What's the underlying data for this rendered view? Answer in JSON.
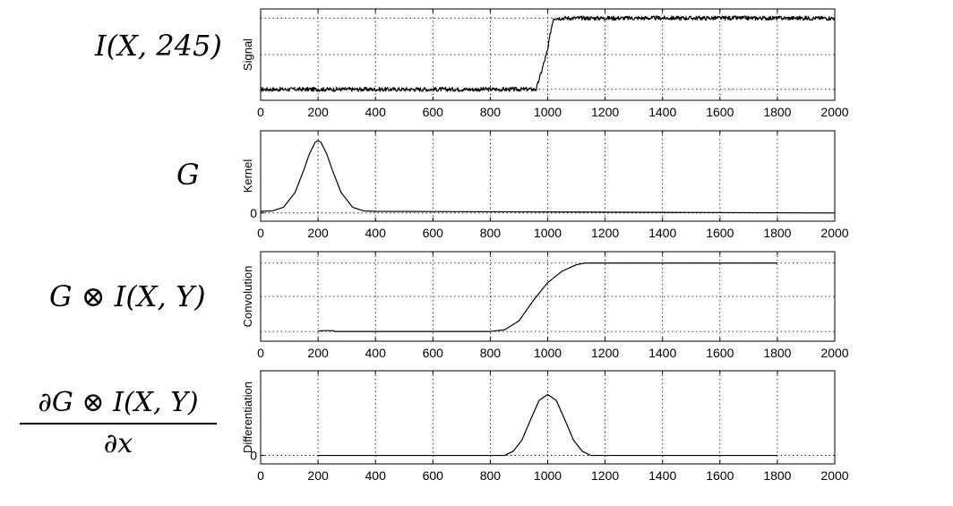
{
  "equations": {
    "signal": "I(X, 245)",
    "kernel": "G",
    "convolution": "G ⊗ I(X, Y)",
    "diff_numerator": "∂G ⊗ I(X, Y)",
    "diff_denominator": "∂x"
  },
  "chart_data": [
    {
      "type": "line",
      "title": "",
      "xlabel": "",
      "ylabel": "Signal",
      "xlim": [
        0,
        2000
      ],
      "ylim": [
        0,
        1
      ],
      "xticks": [
        0,
        200,
        400,
        600,
        800,
        1000,
        1200,
        1400,
        1600,
        1800,
        2000
      ],
      "yticks": [],
      "grid": true,
      "series": [
        {
          "x": [
            0,
            960,
            1000,
            1010,
            1020,
            2000
          ],
          "y": [
            0.12,
            0.12,
            0.55,
            0.75,
            0.9,
            0.9
          ],
          "noise": true
        }
      ]
    },
    {
      "type": "line",
      "title": "",
      "xlabel": "",
      "ylabel": "Kernel",
      "xlim": [
        0,
        2000
      ],
      "ylim": [
        -0.1,
        1
      ],
      "xticks": [
        0,
        200,
        400,
        600,
        800,
        1000,
        1200,
        1400,
        1600,
        1800,
        2000
      ],
      "yticks": [
        0
      ],
      "grid": true,
      "series": [
        {
          "x": [
            0,
            40,
            80,
            120,
            150,
            170,
            190,
            200,
            210,
            230,
            250,
            280,
            320,
            360,
            400,
            2000
          ],
          "y": [
            0.02,
            0.025,
            0.07,
            0.25,
            0.52,
            0.72,
            0.86,
            0.88,
            0.86,
            0.72,
            0.52,
            0.25,
            0.07,
            0.025,
            0.02,
            0.0
          ]
        }
      ]
    },
    {
      "type": "line",
      "title": "",
      "xlabel": "",
      "ylabel": "Convolution",
      "xlim": [
        0,
        2000
      ],
      "ylim": [
        0,
        1.1
      ],
      "xticks": [
        0,
        200,
        400,
        600,
        800,
        1000,
        1200,
        1400,
        1600,
        1800,
        2000
      ],
      "yticks": [],
      "grid": true,
      "series": [
        {
          "x": [
            200,
            210,
            250,
            260,
            800,
            850,
            900,
            950,
            1000,
            1050,
            1100,
            1130,
            1150,
            1800
          ],
          "y": [
            0.12,
            0.13,
            0.13,
            0.12,
            0.12,
            0.14,
            0.25,
            0.5,
            0.72,
            0.86,
            0.94,
            0.96,
            0.96,
            0.96
          ]
        }
      ]
    },
    {
      "type": "line",
      "title": "",
      "xlabel": "",
      "ylabel": "Differentiation",
      "xlim": [
        0,
        2000
      ],
      "ylim": [
        -0.1,
        1.0
      ],
      "xticks": [
        0,
        200,
        400,
        600,
        800,
        1000,
        1200,
        1400,
        1600,
        1800,
        2000
      ],
      "yticks": [
        0
      ],
      "grid": true,
      "series": [
        {
          "x": [
            200,
            850,
            880,
            910,
            940,
            970,
            1000,
            1030,
            1060,
            1090,
            1120,
            1150,
            1800
          ],
          "y": [
            0,
            0,
            0.05,
            0.18,
            0.42,
            0.65,
            0.72,
            0.65,
            0.42,
            0.18,
            0.05,
            0,
            0
          ]
        }
      ]
    }
  ]
}
